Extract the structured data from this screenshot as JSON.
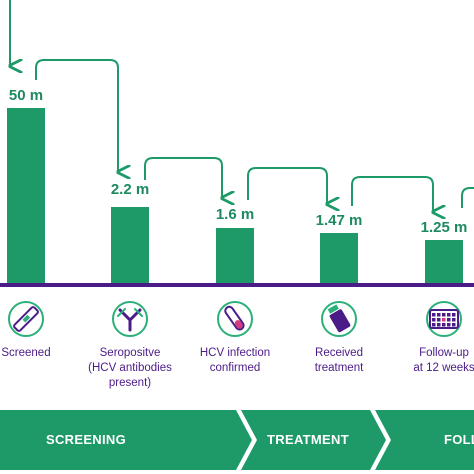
{
  "colors": {
    "bar": "#1d9a68",
    "value_text": "#1d8a5f",
    "arrow": "#1d9a68",
    "baseline": "#4b1b87",
    "label_text": "#4b1b87",
    "icon_ring": "#2bb07a",
    "icon_fill": "#4b1b87",
    "phase_band": "#1d9a68",
    "phase_text": "#ffffff"
  },
  "chart_data": {
    "type": "bar",
    "categories": [
      "Screened",
      "Seropositve (HCV antibodies present)",
      "HCV infection confirmed",
      "Received treatment",
      "Follow-up at 12 weeks"
    ],
    "category_lines": [
      [
        "Screened"
      ],
      [
        "Seropositve",
        "(HCV antibodies",
        "present)"
      ],
      [
        "HCV infection",
        "confirmed"
      ],
      [
        "Received",
        "treatment"
      ],
      [
        "Follow-up",
        "at 12 weeks"
      ]
    ],
    "values": [
      50,
      2.2,
      1.6,
      1.47,
      1.25
    ],
    "value_labels": [
      "50 m",
      "2.2 m",
      "1.6 m",
      "1.47 m",
      "1.25 m"
    ],
    "unit": "m",
    "icons": [
      "test-strip-icon",
      "antibody-icon",
      "test-tube-icon",
      "medicine-vial-icon",
      "calendar-icon"
    ],
    "phases": [
      "SCREENING",
      "TREATMENT",
      "FOLLOW-UP"
    ],
    "title": "",
    "xlabel": "",
    "ylabel": ""
  }
}
